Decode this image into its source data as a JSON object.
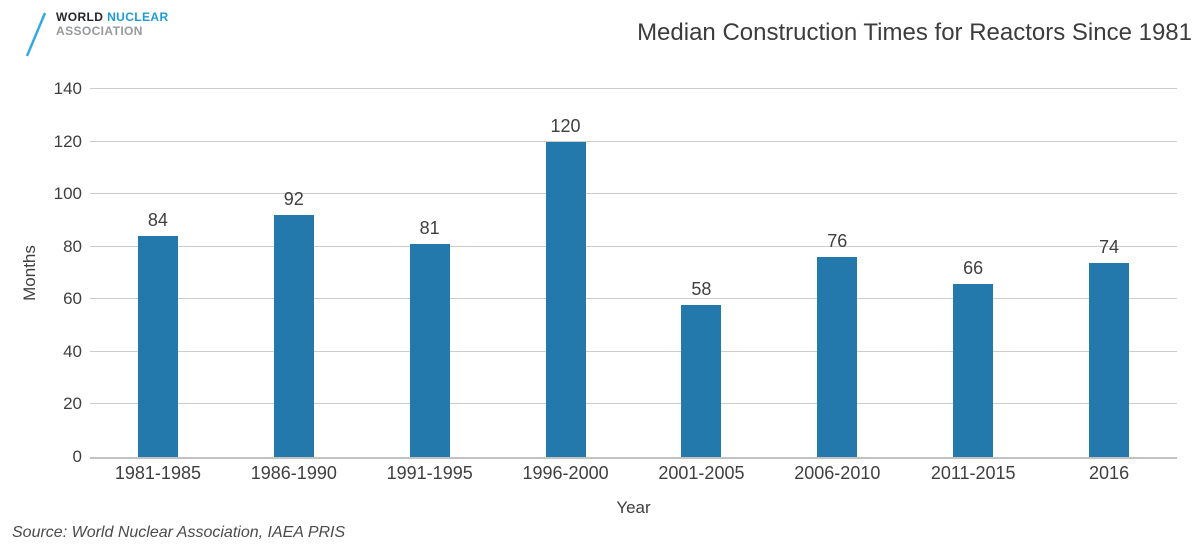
{
  "logo": {
    "word1": "WORLD",
    "word2": "NUCLEAR",
    "word3": "ASSOCIATION"
  },
  "source": "Source: World Nuclear Association, IAEA PRIS",
  "colors": {
    "bar": "#2379AC",
    "grid": "#cccccc",
    "axis": "#c2c2c2",
    "text": "#3F3F3F",
    "logo_dark": "#26242E",
    "logo_blue": "#1E9CD7",
    "logo_gray": "#97999C",
    "slash_blue": "#2FA8E1"
  },
  "chart_data": {
    "type": "bar",
    "title": "Median Construction Times for Reactors Since 1981",
    "categories": [
      "1981-1985",
      "1986-1990",
      "1991-1995",
      "1996-2000",
      "2001-2005",
      "2006-2010",
      "2011-2015",
      "2016"
    ],
    "values": [
      84,
      92,
      81,
      120,
      58,
      76,
      66,
      74
    ],
    "xlabel": "Year",
    "ylabel": "Months",
    "ylim": [
      0,
      140
    ],
    "yticks": [
      0,
      20,
      40,
      60,
      80,
      100,
      120,
      140
    ],
    "grid": true,
    "bar_labels": true,
    "legend": "none"
  }
}
